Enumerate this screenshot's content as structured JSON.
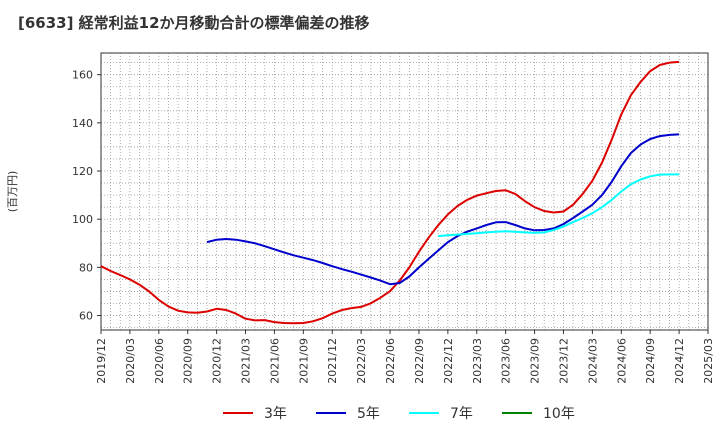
{
  "chart_data": {
    "type": "line",
    "title": "[6633]  経常利益12か月移動合計の標準偏差の推移",
    "ylabel": "(百万円)",
    "xlabel": "",
    "ylim": [
      54,
      169
    ],
    "yticks": [
      60,
      80,
      100,
      120,
      140,
      160
    ],
    "xticks": [
      "2019/12",
      "2020/03",
      "2020/06",
      "2020/09",
      "2020/12",
      "2021/03",
      "2021/06",
      "2021/09",
      "2021/12",
      "2022/03",
      "2022/06",
      "2022/09",
      "2022/12",
      "2023/03",
      "2023/06",
      "2023/09",
      "2023/12",
      "2024/03",
      "2024/06",
      "2024/09",
      "2024/12",
      "2025/03"
    ],
    "grid": true,
    "legend_position": "bottom",
    "series": [
      {
        "name": "3年",
        "color": "#dd0000",
        "x": [
          "2019/12",
          "2020/01",
          "2020/02",
          "2020/03",
          "2020/04",
          "2020/05",
          "2020/06",
          "2020/07",
          "2020/08",
          "2020/09",
          "2020/10",
          "2020/11",
          "2020/12",
          "2021/01",
          "2021/02",
          "2021/03",
          "2021/04",
          "2021/05",
          "2021/06",
          "2021/07",
          "2021/08",
          "2021/09",
          "2021/10",
          "2021/11",
          "2021/12",
          "2022/01",
          "2022/02",
          "2022/03",
          "2022/04",
          "2022/05",
          "2022/06",
          "2022/07",
          "2022/08",
          "2022/09",
          "2022/10",
          "2022/11",
          "2022/12",
          "2023/01",
          "2023/02",
          "2023/03",
          "2023/04",
          "2023/05",
          "2023/06",
          "2023/07",
          "2023/08",
          "2023/09",
          "2023/10",
          "2023/11",
          "2023/12",
          "2024/01",
          "2024/02",
          "2024/03",
          "2024/04",
          "2024/05",
          "2024/06",
          "2024/07",
          "2024/08",
          "2024/09",
          "2024/10",
          "2024/11",
          "2024/12"
        ],
        "values": [
          80.5,
          78.5,
          76.8,
          75.0,
          72.8,
          70.0,
          66.5,
          63.8,
          62.0,
          61.3,
          61.2,
          61.7,
          62.8,
          62.3,
          60.8,
          58.7,
          58.0,
          58.1,
          57.3,
          56.9,
          56.8,
          56.9,
          57.6,
          58.9,
          60.8,
          62.3,
          63.1,
          63.6,
          65.1,
          67.4,
          70.1,
          74.5,
          80.0,
          86.5,
          92.3,
          97.5,
          102.0,
          105.5,
          108.0,
          109.8,
          110.8,
          111.7,
          112.0,
          110.5,
          107.5,
          105.0,
          103.4,
          102.8,
          103.2,
          106.0,
          110.5,
          116.0,
          123.5,
          133.0,
          143.5,
          151.5,
          157.0,
          161.5,
          164.0,
          165.0,
          165.3
        ]
      },
      {
        "name": "5年",
        "color": "#0000cc",
        "x": [
          "2020/11",
          "2020/12",
          "2021/01",
          "2021/02",
          "2021/03",
          "2021/04",
          "2021/05",
          "2021/06",
          "2021/07",
          "2021/08",
          "2021/09",
          "2021/10",
          "2021/11",
          "2021/12",
          "2022/01",
          "2022/02",
          "2022/03",
          "2022/04",
          "2022/05",
          "2022/06",
          "2022/07",
          "2022/08",
          "2022/09",
          "2022/10",
          "2022/11",
          "2022/12",
          "2023/01",
          "2023/02",
          "2023/03",
          "2023/04",
          "2023/05",
          "2023/06",
          "2023/07",
          "2023/08",
          "2023/09",
          "2023/10",
          "2023/11",
          "2023/12",
          "2024/01",
          "2024/02",
          "2024/03",
          "2024/04",
          "2024/05",
          "2024/06",
          "2024/07",
          "2024/08",
          "2024/09",
          "2024/10",
          "2024/11",
          "2024/12"
        ],
        "values": [
          90.5,
          91.5,
          91.8,
          91.5,
          90.8,
          90.0,
          88.8,
          87.5,
          86.2,
          85.0,
          84.0,
          83.0,
          81.8,
          80.5,
          79.3,
          78.2,
          77.0,
          75.8,
          74.5,
          73.0,
          73.5,
          76.2,
          80.0,
          83.5,
          87.0,
          90.5,
          93.0,
          94.8,
          96.2,
          97.6,
          98.7,
          98.8,
          97.6,
          96.2,
          95.4,
          95.5,
          96.2,
          98.0,
          100.5,
          103.2,
          106.0,
          110.0,
          115.5,
          122.0,
          127.5,
          131.0,
          133.3,
          134.5,
          135.0,
          135.2
        ]
      },
      {
        "name": "7年",
        "color": "#00ffff",
        "x": [
          "2022/11",
          "2022/12",
          "2023/01",
          "2023/02",
          "2023/03",
          "2023/04",
          "2023/05",
          "2023/06",
          "2023/07",
          "2023/08",
          "2023/09",
          "2023/10",
          "2023/11",
          "2023/12",
          "2024/01",
          "2024/02",
          "2024/03",
          "2024/04",
          "2024/05",
          "2024/06",
          "2024/07",
          "2024/08",
          "2024/09",
          "2024/10",
          "2024/11",
          "2024/12"
        ],
        "values": [
          93.0,
          93.3,
          93.6,
          93.9,
          94.2,
          94.5,
          94.8,
          95.0,
          94.8,
          94.5,
          94.3,
          94.5,
          95.5,
          97.0,
          98.8,
          100.5,
          102.5,
          105.0,
          108.0,
          111.5,
          114.5,
          116.5,
          117.8,
          118.5,
          118.6,
          118.6
        ]
      },
      {
        "name": "10年",
        "color": "#008000",
        "x": [],
        "values": []
      }
    ]
  }
}
